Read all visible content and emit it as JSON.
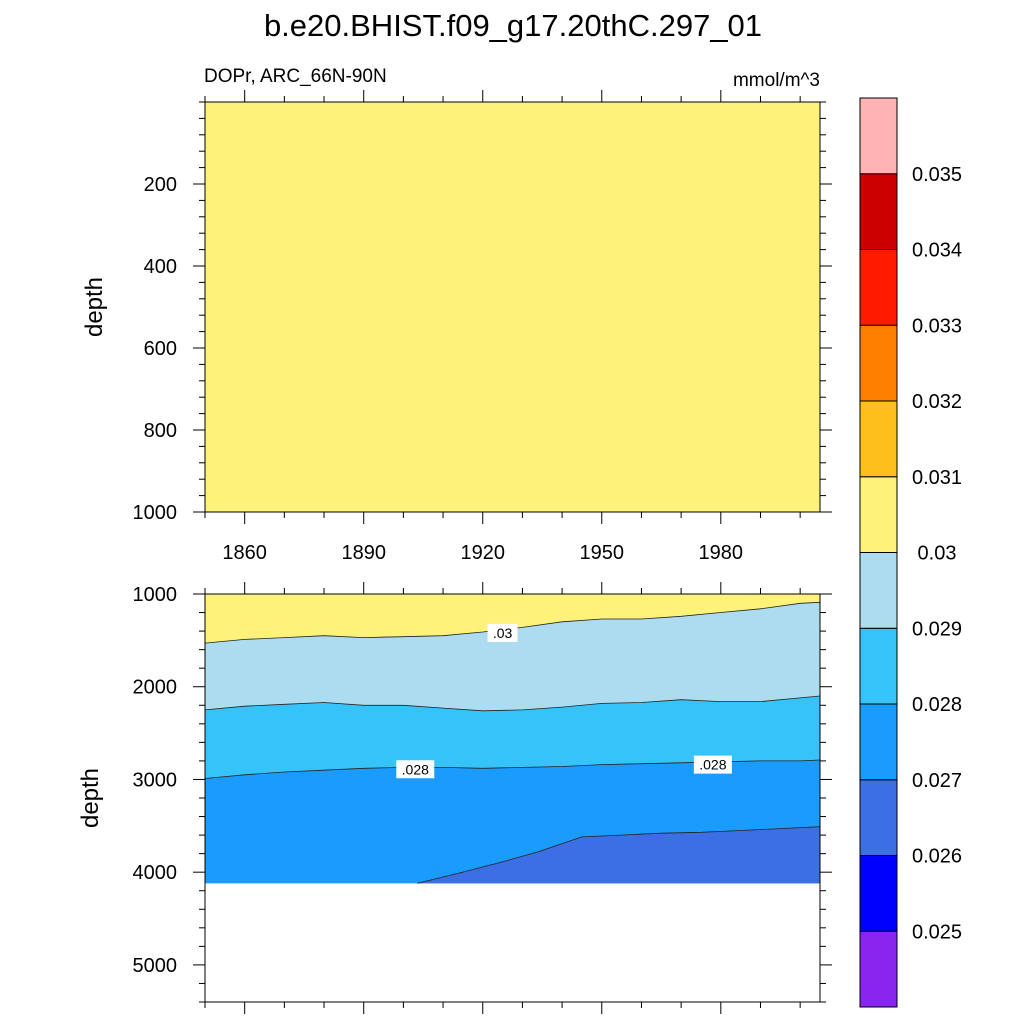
{
  "title": "b.e20.BHIST.f09_g17.20thC.297_01",
  "subtitle_left": "DOPr, ARC_66N-90N",
  "subtitle_right": "mmol/m^3",
  "chart_data": [
    {
      "type": "heatmap",
      "ylabel": "depth",
      "y_ticks": [
        200,
        400,
        600,
        800,
        1000
      ],
      "ylim": [
        0,
        1000
      ],
      "y_reversed": true,
      "x_ticks": [
        1860,
        1890,
        1920,
        1950,
        1980
      ],
      "xlim": [
        1850,
        2005
      ],
      "fill_level_range": [
        0.03,
        0.031
      ],
      "fill_color": "#FFF27A"
    },
    {
      "type": "heatmap",
      "ylabel": "depth",
      "y_ticks": [
        1000,
        2000,
        3000,
        4000,
        5000
      ],
      "ylim": [
        1000,
        5400
      ],
      "y_reversed": true,
      "xlim": [
        1850,
        2005
      ],
      "data_bottom_depth": 4120,
      "boundaries": [
        {
          "level": 0.03,
          "x": [
            1850,
            1860,
            1870,
            1880,
            1890,
            1900,
            1910,
            1920,
            1930,
            1940,
            1950,
            1960,
            1970,
            1980,
            1990,
            2000,
            2005
          ],
          "depth": [
            1530,
            1490,
            1470,
            1450,
            1470,
            1460,
            1450,
            1410,
            1360,
            1300,
            1270,
            1270,
            1240,
            1200,
            1160,
            1100,
            1090
          ]
        },
        {
          "level": 0.029,
          "x": [
            1850,
            1860,
            1870,
            1880,
            1890,
            1900,
            1910,
            1920,
            1930,
            1940,
            1950,
            1960,
            1970,
            1980,
            1990,
            2000,
            2005
          ],
          "depth": [
            2250,
            2210,
            2190,
            2170,
            2200,
            2200,
            2230,
            2260,
            2250,
            2220,
            2180,
            2170,
            2140,
            2160,
            2160,
            2120,
            2100
          ]
        },
        {
          "level": 0.028,
          "x": [
            1850,
            1860,
            1870,
            1880,
            1890,
            1900,
            1910,
            1920,
            1930,
            1940,
            1950,
            1960,
            1970,
            1980,
            1990,
            2000,
            2005
          ],
          "depth": [
            2990,
            2950,
            2920,
            2900,
            2880,
            2870,
            2870,
            2880,
            2870,
            2860,
            2840,
            2830,
            2820,
            2810,
            2800,
            2800,
            2790
          ]
        },
        {
          "level": 0.027,
          "x": [
            1903.5,
            1914,
            1924,
            1934,
            1945,
            1955,
            1965,
            1975,
            1985,
            1995,
            2005
          ],
          "depth": [
            4120,
            4010,
            3900,
            3780,
            3620,
            3600,
            3580,
            3570,
            3550,
            3530,
            3510
          ]
        }
      ],
      "contour_labels": [
        {
          "text": ".03",
          "x": 1925,
          "y": 1420
        },
        {
          "text": ".028",
          "x": 1903,
          "y": 2890
        },
        {
          "text": ".028",
          "x": 1978,
          "y": 2840
        }
      ]
    }
  ],
  "colorbar": {
    "colors": [
      "#8A25F0",
      "#0000FF",
      "#3B6FE3",
      "#1A9CFF",
      "#36C3FA",
      "#ADDCF0",
      "#FFF27A",
      "#FFBF1A",
      "#FF7F00",
      "#FF1A00",
      "#CC0000",
      "#FFB3B3"
    ],
    "labels": [
      "0.025",
      "0.026",
      "0.027",
      "0.028",
      "0.029",
      "0.03",
      "0.031",
      "0.032",
      "0.033",
      "0.034",
      "0.035"
    ]
  }
}
